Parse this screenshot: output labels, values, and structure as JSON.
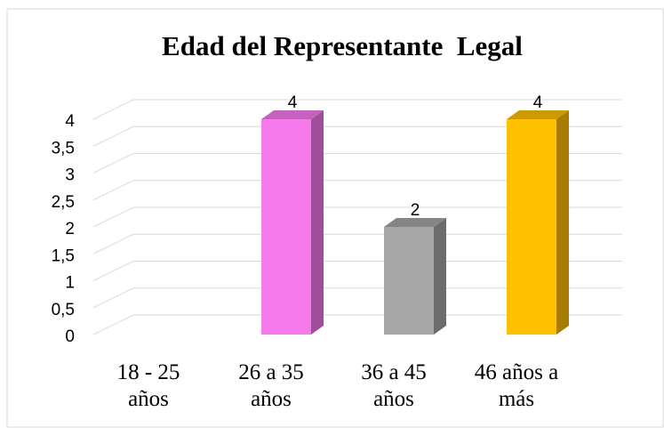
{
  "chart_data": {
    "type": "bar3d",
    "title": "Edad del Representante  Legal",
    "categories": [
      "18 - 25 años",
      "26 a 35 años",
      "36 a 45 años",
      "46 años a más"
    ],
    "values": [
      0,
      4,
      2,
      4
    ],
    "colors": [
      "#4472c4",
      "#f57aec",
      "#a6a6a6",
      "#ffc000"
    ],
    "ylim": [
      0,
      4
    ],
    "yticks": [
      0,
      {
        "value": 0.5,
        "label": "0,5"
      },
      1,
      {
        "value": 1.5,
        "label": "1,5"
      },
      2,
      {
        "value": 2.5,
        "label": "2,5"
      },
      3,
      {
        "value": 3.5,
        "label": "3,5"
      },
      4
    ],
    "grid": true
  }
}
